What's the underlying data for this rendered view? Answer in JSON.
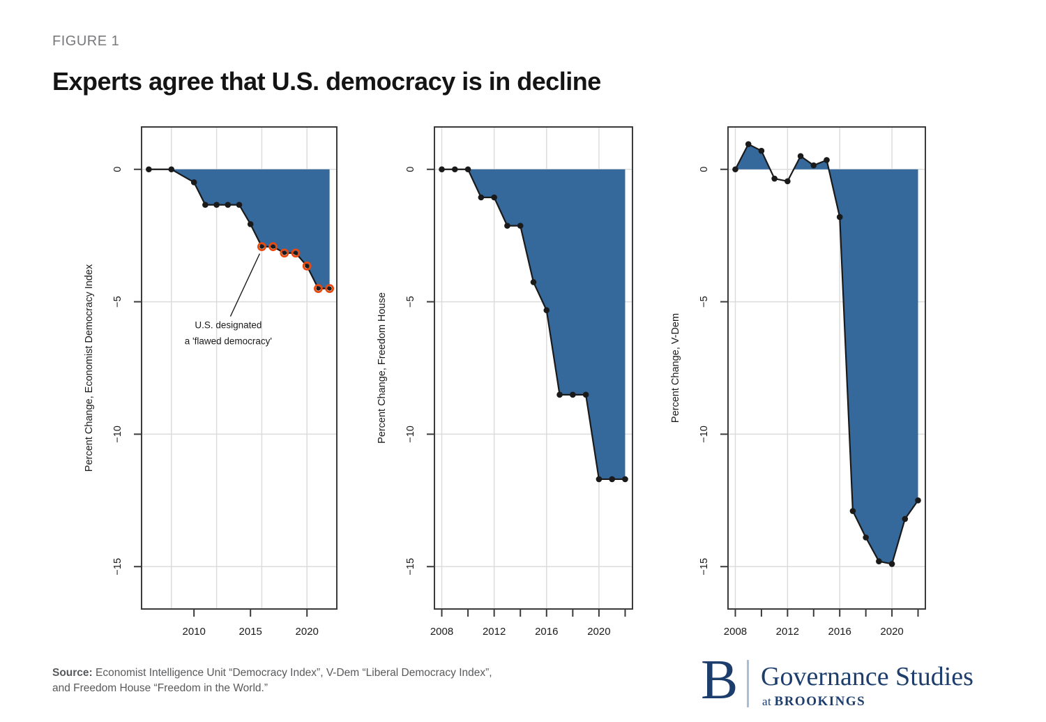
{
  "figure": {
    "label": "FIGURE 1",
    "title": "Experts agree that U.S. democracy is in decline"
  },
  "chart_data": [
    {
      "type": "area",
      "id": "economist-democracy-index",
      "ylabel": "Percent Change, Economist Democracy Index",
      "x": [
        2006,
        2008,
        2010,
        2011,
        2012,
        2013,
        2014,
        2015,
        2016,
        2017,
        2018,
        2019,
        2020,
        2021,
        2022
      ],
      "y": [
        0,
        0,
        -0.49,
        -1.34,
        -1.34,
        -1.34,
        -1.34,
        -2.07,
        -2.92,
        -2.92,
        -3.16,
        -3.16,
        -3.65,
        -4.5,
        -4.5
      ],
      "x_ticks": [
        {
          "v": 2010,
          "label": "2010"
        },
        {
          "v": 2015,
          "label": "2015"
        },
        {
          "v": 2020,
          "label": "2020"
        }
      ],
      "x_gridlines": [
        2008,
        2012,
        2016,
        2020
      ],
      "y_ticks": [
        0,
        -5,
        -10,
        -15
      ],
      "xlim": [
        2005.36,
        2022.64
      ],
      "ylim": [
        1.6,
        -16.6
      ],
      "highlight": {
        "from_x": 2016
      },
      "annotation": {
        "x": 2016,
        "lines": [
          "U.S. designated",
          "a 'flawed democracy'"
        ]
      }
    },
    {
      "type": "area",
      "id": "freedom-house",
      "ylabel": "Percent Change, Freedom House",
      "x": [
        2008,
        2009,
        2010,
        2011,
        2012,
        2013,
        2014,
        2015,
        2016,
        2017,
        2018,
        2019,
        2020,
        2021,
        2022
      ],
      "y": [
        0,
        0,
        0,
        -1.06,
        -1.06,
        -2.13,
        -2.13,
        -4.26,
        -5.32,
        -8.51,
        -8.51,
        -8.51,
        -11.7,
        -11.7,
        -11.7
      ],
      "x_ticks": [
        {
          "v": 2008,
          "label": "2008"
        },
        {
          "v": 2010,
          "label": null
        },
        {
          "v": 2012,
          "label": "2012"
        },
        {
          "v": 2014,
          "label": null
        },
        {
          "v": 2016,
          "label": "2016"
        },
        {
          "v": 2018,
          "label": null
        },
        {
          "v": 2020,
          "label": "2020"
        },
        {
          "v": 2022,
          "label": null
        }
      ],
      "x_gridlines": [
        2008,
        2012,
        2016,
        2020
      ],
      "y_ticks": [
        0,
        -5,
        -10,
        -15
      ],
      "xlim": [
        2007.44,
        2022.56
      ],
      "ylim": [
        1.6,
        -16.6
      ],
      "highlight": null,
      "annotation": null
    },
    {
      "type": "area",
      "id": "v-dem",
      "ylabel": "Percent Change, V-Dem",
      "x": [
        2008,
        2009,
        2010,
        2011,
        2012,
        2013,
        2014,
        2015,
        2016,
        2017,
        2018,
        2019,
        2020,
        2021,
        2022
      ],
      "y": [
        0,
        0.95,
        0.7,
        -0.35,
        -0.45,
        0.5,
        0.15,
        0.35,
        -1.8,
        -12.9,
        -13.9,
        -14.8,
        -14.9,
        -13.2,
        -12.5
      ],
      "x_ticks": [
        {
          "v": 2008,
          "label": "2008"
        },
        {
          "v": 2010,
          "label": null
        },
        {
          "v": 2012,
          "label": "2012"
        },
        {
          "v": 2014,
          "label": null
        },
        {
          "v": 2016,
          "label": "2016"
        },
        {
          "v": 2018,
          "label": null
        },
        {
          "v": 2020,
          "label": "2020"
        },
        {
          "v": 2022,
          "label": null
        }
      ],
      "x_gridlines": [
        2008,
        2012,
        2016,
        2020
      ],
      "y_ticks": [
        0,
        -5,
        -10,
        -15
      ],
      "xlim": [
        2007.44,
        2022.56
      ],
      "ylim": [
        1.6,
        -16.6
      ],
      "highlight": null,
      "annotation": null
    }
  ],
  "source": {
    "prefix": "Source:",
    "line1": "Economist Intelligence Unit “Democracy Index”, V-Dem “Liberal Democracy Index”,",
    "line2": "and Freedom House “Freedom in the World.”"
  },
  "logo": {
    "initial": "B",
    "name": "Governance Studies",
    "sub_prefix": "at",
    "sub": "BROOKINGS"
  },
  "colors": {
    "fill": "#35689B",
    "line": "#1A1A1A",
    "grid": "#DCDCDC",
    "frame": "#3A3A3A",
    "ring": "#E8490F",
    "navy": "#1D3E6C",
    "divider": "#A9BED8",
    "source_text": "#58595B",
    "figure_label": "#77787B"
  }
}
